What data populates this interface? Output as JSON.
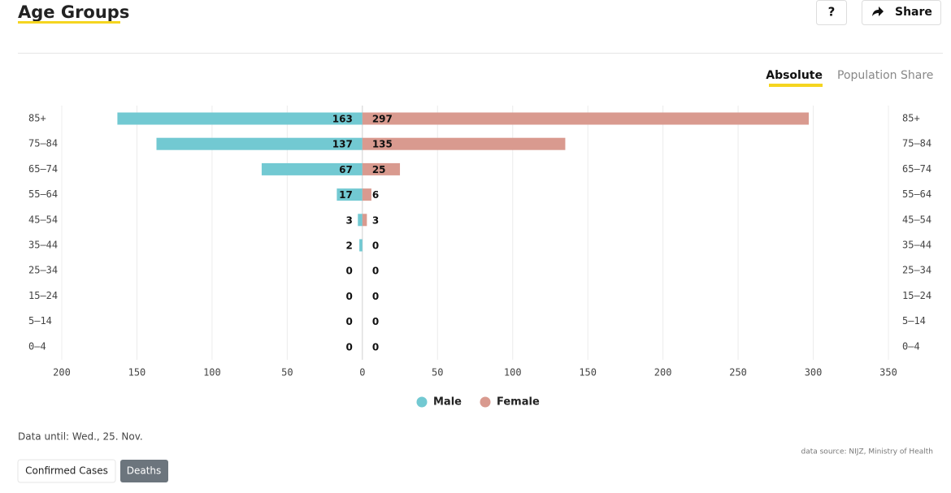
{
  "header": {
    "title": "Age Groups",
    "buttons": [
      "?",
      "Share"
    ]
  },
  "toggle": [
    "Absolute",
    "Population Share"
  ],
  "chart_data": {
    "type": "pyramid",
    "categories": [
      "85+",
      "75–84",
      "65–74",
      "55–64",
      "45–54",
      "35–44",
      "25–34",
      "15–24",
      "5–14",
      "0–4"
    ],
    "series": [
      {
        "name": "Male",
        "color": "#72c9d2",
        "values": [
          163,
          137,
          67,
          17,
          3,
          2,
          0,
          0,
          0,
          0
        ]
      },
      {
        "name": "Female",
        "color": "#d99a8f",
        "values": [
          297,
          135,
          25,
          6,
          3,
          0,
          0,
          0,
          0,
          0
        ]
      }
    ],
    "xlim": [
      -200,
      350
    ],
    "xticks": [
      {
        "value": -200,
        "label": "200"
      },
      {
        "value": -150,
        "label": "150"
      },
      {
        "value": -100,
        "label": "100"
      },
      {
        "value": -50,
        "label": "50"
      },
      0,
      50,
      100,
      150,
      200,
      250,
      300,
      350
    ],
    "grid": true
  },
  "footer": {
    "date": "Data until: Wed., 25. Nov.",
    "source": "data source: NIJZ, Ministry of Health"
  },
  "tabs": [
    "Confirmed Cases",
    "Deaths"
  ]
}
